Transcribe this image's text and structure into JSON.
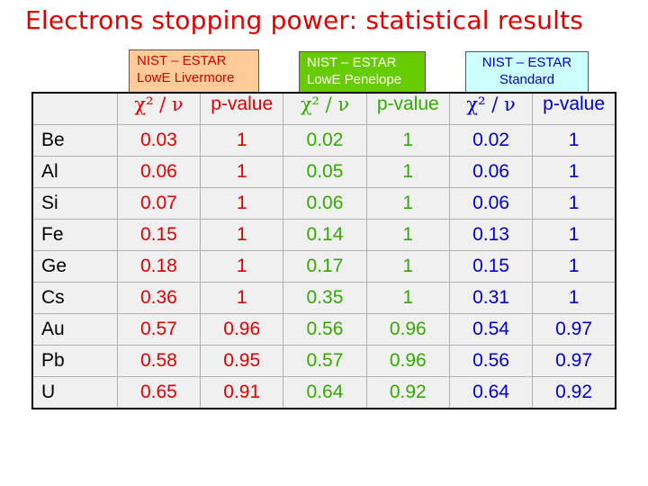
{
  "title": "Electrons stopping power: statistical results",
  "groups": [
    {
      "line1": "NIST – ESTAR",
      "line2": "LowE Livermore",
      "color": "#e00000",
      "bg": "#ffcc99"
    },
    {
      "line1": "NIST – ESTAR",
      "line2": "LowE Penelope",
      "color": "#ffffff",
      "bg": "#66cc00"
    },
    {
      "line1": "NIST – ESTAR",
      "line2": "Standard",
      "color": "#0000cc",
      "bg": "#ccffff"
    }
  ],
  "columns": {
    "chi": "χ² / ν",
    "pvalue": "p-value"
  },
  "rows": [
    {
      "element": "Be",
      "values": [
        "0.03",
        "1",
        "0.02",
        "1",
        "0.02",
        "1"
      ]
    },
    {
      "element": "Al",
      "values": [
        "0.06",
        "1",
        "0.05",
        "1",
        "0.06",
        "1"
      ]
    },
    {
      "element": "Si",
      "values": [
        "0.07",
        "1",
        "0.06",
        "1",
        "0.06",
        "1"
      ]
    },
    {
      "element": "Fe",
      "values": [
        "0.15",
        "1",
        "0.14",
        "1",
        "0.13",
        "1"
      ]
    },
    {
      "element": "Ge",
      "values": [
        "0.18",
        "1",
        "0.17",
        "1",
        "0.15",
        "1"
      ]
    },
    {
      "element": "Cs",
      "values": [
        "0.36",
        "1",
        "0.35",
        "1",
        "0.31",
        "1"
      ]
    },
    {
      "element": "Au",
      "values": [
        "0.57",
        "0.96",
        "0.56",
        "0.96",
        "0.54",
        "0.97"
      ]
    },
    {
      "element": "Pb",
      "values": [
        "0.58",
        "0.95",
        "0.57",
        "0.96",
        "0.56",
        "0.97"
      ]
    },
    {
      "element": "U",
      "values": [
        "0.65",
        "0.91",
        "0.64",
        "0.92",
        "0.64",
        "0.92"
      ]
    }
  ]
}
